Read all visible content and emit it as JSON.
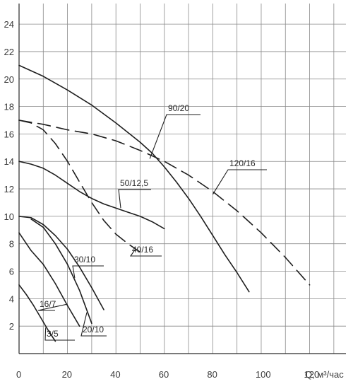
{
  "chart_data": {
    "type": "line",
    "title": "",
    "xlabel": "Q, м³/час",
    "ylabel": "",
    "xlim": [
      0,
      135
    ],
    "ylim": [
      0,
      25.5
    ],
    "grid": true,
    "x_ticks": [
      0,
      20,
      40,
      60,
      80,
      100,
      120
    ],
    "x_tick_labels": [
      "0",
      "20",
      "40",
      "60",
      "80",
      "100",
      "120"
    ],
    "y_ticks": [
      2,
      4,
      6,
      8,
      10,
      12,
      14,
      16,
      18,
      20,
      22,
      24
    ],
    "y_tick_labels": [
      "2",
      "4",
      "6",
      "8",
      "10",
      "12",
      "14",
      "16",
      "18",
      "20",
      "22",
      "24"
    ],
    "series": [
      {
        "name": "90/20",
        "style": "solid",
        "x": [
          0,
          10,
          20,
          30,
          40,
          50,
          55,
          60,
          65,
          70,
          75,
          80,
          85,
          90,
          95
        ],
        "y": [
          21,
          20.2,
          19.2,
          18.1,
          16.8,
          15.4,
          14.6,
          13.6,
          12.5,
          11.3,
          10,
          8.6,
          7.2,
          5.9,
          4.5
        ]
      },
      {
        "name": "120/16",
        "style": "dashed",
        "x": [
          0,
          10,
          20,
          30,
          40,
          50,
          60,
          70,
          80,
          90,
          100,
          110,
          120
        ],
        "y": [
          17,
          16.7,
          16.3,
          16,
          15.5,
          14.8,
          14,
          13,
          11.8,
          10.4,
          8.8,
          7,
          5
        ]
      },
      {
        "name": "50/12,5",
        "style": "solid",
        "x": [
          0,
          5,
          10,
          15,
          20,
          25,
          30,
          35,
          40,
          45,
          50,
          55,
          60
        ],
        "y": [
          14,
          13.8,
          13.5,
          13,
          12.4,
          11.8,
          11.3,
          10.9,
          10.6,
          10.3,
          10,
          9.6,
          9.1
        ]
      },
      {
        "name": "40/16",
        "style": "dashed",
        "x": [
          0,
          5,
          10,
          15,
          20,
          25,
          30,
          35,
          40,
          45,
          50
        ],
        "y": [
          17,
          16.8,
          16.3,
          15.3,
          14,
          12.5,
          11,
          9.7,
          8.7,
          8,
          7.4
        ]
      },
      {
        "name": "30/10",
        "style": "solid",
        "x": [
          0,
          5,
          10,
          15,
          20,
          25,
          30,
          35
        ],
        "y": [
          10,
          9.9,
          9.4,
          8.6,
          7.6,
          6.3,
          4.8,
          3.2
        ]
      },
      {
        "name": "20/10",
        "style": "solid",
        "x": [
          5,
          10,
          15,
          20,
          25,
          30
        ],
        "y": [
          9.8,
          9.2,
          8,
          6.5,
          4.6,
          2.2
        ]
      },
      {
        "name": "16/7",
        "style": "solid",
        "x": [
          0,
          5,
          10,
          15,
          20,
          25
        ],
        "y": [
          8.8,
          7.5,
          6.5,
          5.1,
          3.5,
          2
        ]
      },
      {
        "name": "3/5",
        "style": "solid",
        "x": [
          0,
          3,
          6,
          9,
          12,
          15
        ],
        "y": [
          5,
          4.3,
          3.5,
          2.6,
          1.7,
          0.9
        ]
      }
    ],
    "annotations": [
      {
        "text": "90/20",
        "series": "90/20"
      },
      {
        "text": "120/16",
        "series": "120/16"
      },
      {
        "text": "50/12,5",
        "series": "50/12,5"
      },
      {
        "text": "40/16",
        "series": "40/16"
      },
      {
        "text": "30/10",
        "series": "30/10"
      },
      {
        "text": "20/10",
        "series": "20/10"
      },
      {
        "text": "16/7",
        "series": "16/7"
      },
      {
        "text": "3/5",
        "series": "3/5"
      }
    ]
  }
}
